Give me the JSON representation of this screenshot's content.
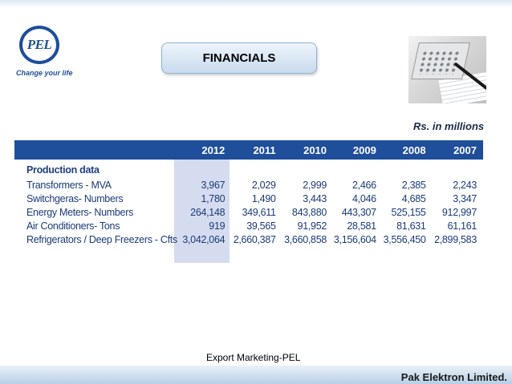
{
  "header": {
    "logo_text": "PEL",
    "tagline": "Change your life",
    "title": "FINANCIALS",
    "units": "Rs. in millions"
  },
  "table": {
    "years": [
      "2012",
      "2011",
      "2010",
      "2009",
      "2008",
      "2007"
    ],
    "section_label": "Production data",
    "rows": [
      {
        "label": "Transformers - MVA",
        "values": [
          "3,967",
          "2,029",
          "2,999",
          "2,466",
          "2,385",
          "2,243"
        ]
      },
      {
        "label": "Switchgeras- Numbers",
        "values": [
          "1,780",
          "1,490",
          "3,443",
          "4,046",
          "4,685",
          "3,347"
        ]
      },
      {
        "label": "Energy Meters- Numbers",
        "values": [
          "264,148",
          "349,611",
          "843,880",
          "443,307",
          "525,155",
          "912,997"
        ]
      },
      {
        "label": "Air Conditioners- Tons",
        "values": [
          "919",
          "39,565",
          "91,952",
          "28,581",
          "81,631",
          "61,161"
        ]
      },
      {
        "label": "Refrigerators / Deep Freezers - Cfts",
        "values": [
          "3,042,064",
          "2,660,387",
          "3,660,858",
          "3,156,604",
          "3,556,450",
          "2,899,583"
        ]
      }
    ]
  },
  "footer": {
    "note": "Export Marketing-PEL",
    "company": "Pak Elektron Limited."
  }
}
